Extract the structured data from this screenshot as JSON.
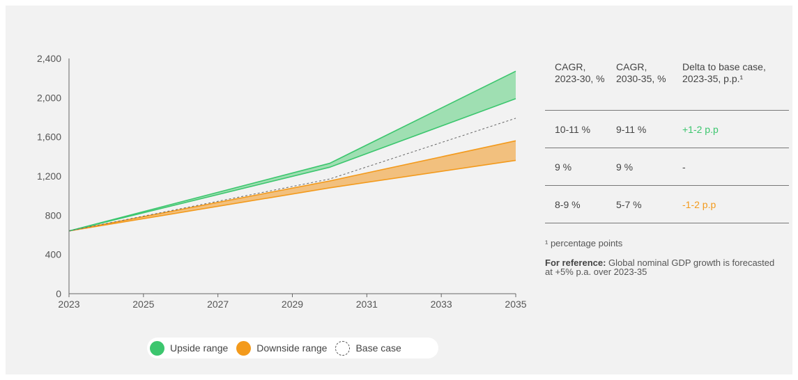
{
  "colors": {
    "upside": "#3cc66e",
    "upside_fill": "#9fdfb2",
    "downside": "#f39a1c",
    "downside_fill": "#f2c07e",
    "base": "#666666",
    "panel": "#f2f2f2"
  },
  "chart_data": {
    "type": "area",
    "x_ticks": [
      "2023",
      "2025",
      "2027",
      "2029",
      "2031",
      "2033",
      "2035"
    ],
    "y_ticks": [
      "0",
      "400",
      "800",
      "1,200",
      "1,600",
      "2,000",
      "2,400"
    ],
    "xlim": [
      2023,
      2035
    ],
    "ylim": [
      0,
      2400
    ],
    "grid": false,
    "legend_position": "bottom",
    "series": [
      {
        "name": "Upside range",
        "x": [
          2023,
          2030,
          2035
        ],
        "low": [
          640,
          1290,
          1990
        ],
        "high": [
          640,
          1330,
          2270
        ]
      },
      {
        "name": "Downside range",
        "x": [
          2023,
          2030,
          2035
        ],
        "low": [
          640,
          1080,
          1360
        ],
        "high": [
          640,
          1150,
          1560
        ]
      },
      {
        "name": "Base case",
        "x": [
          2023,
          2030,
          2035
        ],
        "values": [
          640,
          1170,
          1790
        ]
      }
    ]
  },
  "legend": {
    "upside": "Upside range",
    "downside": "Downside range",
    "base": "Base case"
  },
  "table": {
    "headers": [
      [
        "CAGR,",
        "2023-30, %"
      ],
      [
        "CAGR,",
        "2030-35, %"
      ],
      [
        "Delta to base case,",
        "2023-35, p.p.¹"
      ]
    ],
    "rows": [
      {
        "c1": "10-11 %",
        "c2": "9-11 %",
        "c3": "+1-2 p.p"
      },
      {
        "c1": "9 %",
        "c2": "9 %",
        "c3": "-"
      },
      {
        "c1": "8-9 %",
        "c2": "5-7 %",
        "c3": "-1-2 p.p"
      }
    ]
  },
  "footnote": "¹ percentage points",
  "reference": {
    "label": "For reference:",
    "text": "Global nominal GDP growth is forecasted at +5% p.a. over 2023-35"
  }
}
